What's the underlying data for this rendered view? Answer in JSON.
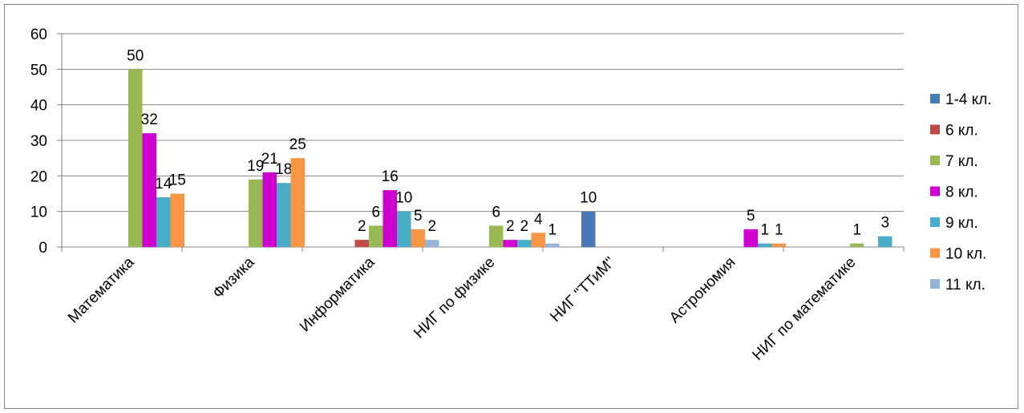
{
  "chart_data": {
    "type": "bar",
    "title": "",
    "xlabel": "",
    "ylabel": "",
    "ylim": [
      0,
      60
    ],
    "yticks": [
      0,
      10,
      20,
      30,
      40,
      50,
      60
    ],
    "grid": true,
    "legend_position": "right",
    "categories": [
      "Математика",
      "Физика",
      "Информатика",
      "НИГ по физике",
      "НИГ \"ТТиМ\"",
      "Астрономия",
      "НИГ по математике"
    ],
    "series": [
      {
        "name": "1-4 кл.",
        "color": "#4a7ab5",
        "values": [
          null,
          null,
          null,
          null,
          10,
          null,
          null
        ]
      },
      {
        "name": "6 кл.",
        "color": "#be4b48",
        "values": [
          null,
          null,
          2,
          null,
          null,
          null,
          null
        ]
      },
      {
        "name": "7 кл.",
        "color": "#98b954",
        "values": [
          50,
          19,
          6,
          6,
          null,
          null,
          1
        ]
      },
      {
        "name": "8 кл.",
        "color": "#d000d0",
        "values": [
          32,
          21,
          16,
          2,
          null,
          5,
          null
        ]
      },
      {
        "name": "9 кл.",
        "color": "#4aacc6",
        "values": [
          14,
          18,
          10,
          2,
          null,
          1,
          3
        ]
      },
      {
        "name": "10 кл.",
        "color": "#f79646",
        "values": [
          15,
          25,
          5,
          4,
          null,
          1,
          null
        ]
      },
      {
        "name": "11 кл.",
        "color": "#95b3d7",
        "values": [
          null,
          null,
          2,
          1,
          null,
          null,
          null
        ]
      }
    ]
  }
}
